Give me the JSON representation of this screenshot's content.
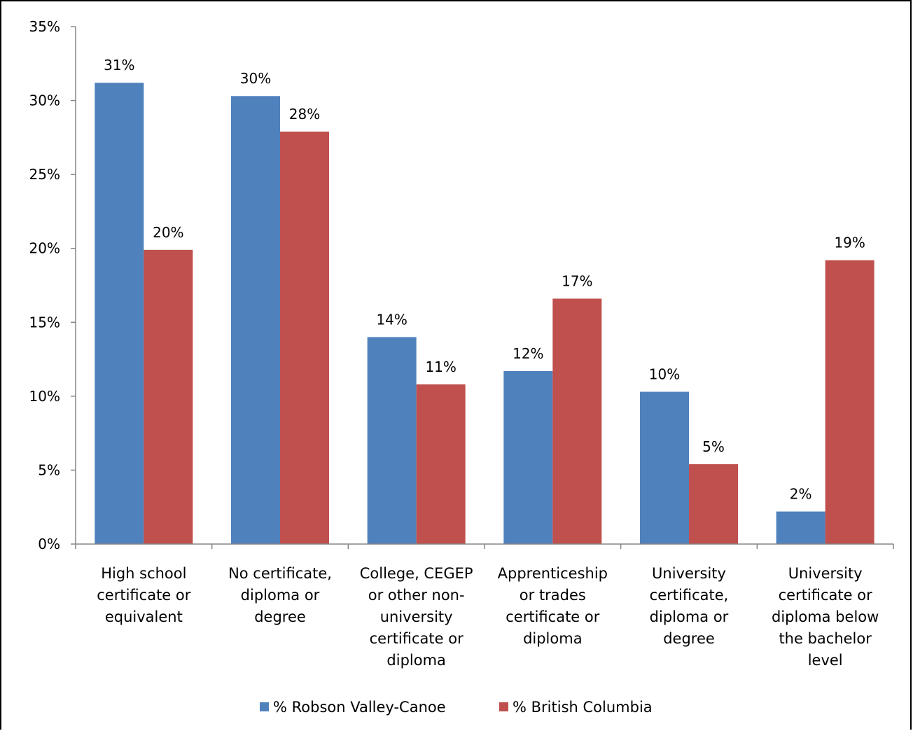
{
  "chart_data": {
    "type": "bar",
    "categories": [
      "High school certificate or equivalent",
      "No certificate, diploma or degree",
      "College, CEGEP or other non-university certificate or diploma",
      "Apprenticeship or trades certificate or diploma",
      "University certificate, diploma or degree",
      "University certificate or diploma below the bachelor level"
    ],
    "category_lines": [
      [
        "High school",
        "certificate or",
        "equivalent"
      ],
      [
        "No certificate,",
        "diploma or",
        "degree"
      ],
      [
        "College, CEGEP",
        "or other non-",
        "university",
        "certificate or",
        "diploma"
      ],
      [
        "Apprenticeship",
        "or trades",
        "certificate or",
        "diploma"
      ],
      [
        "University",
        "certificate,",
        "diploma or",
        "degree"
      ],
      [
        "University",
        "certificate or",
        "diploma below",
        "the bachelor",
        "level"
      ]
    ],
    "series": [
      {
        "name": "% Robson Valley-Canoe",
        "color": "#4F81BD",
        "values": [
          31.2,
          30.3,
          14.0,
          11.7,
          10.3,
          2.2
        ],
        "labels": [
          "31%",
          "30%",
          "14%",
          "12%",
          "10%",
          "2%"
        ]
      },
      {
        "name": "% British Columbia",
        "color": "#C0504D",
        "values": [
          19.9,
          27.9,
          10.8,
          16.6,
          5.4,
          19.2
        ],
        "labels": [
          "20%",
          "28%",
          "11%",
          "17%",
          "5%",
          "19%"
        ]
      }
    ],
    "y_ticks": [
      "0%",
      "5%",
      "10%",
      "15%",
      "20%",
      "25%",
      "30%",
      "35%"
    ],
    "ylim": [
      0,
      35
    ],
    "grid": false,
    "legend_position": "bottom"
  }
}
